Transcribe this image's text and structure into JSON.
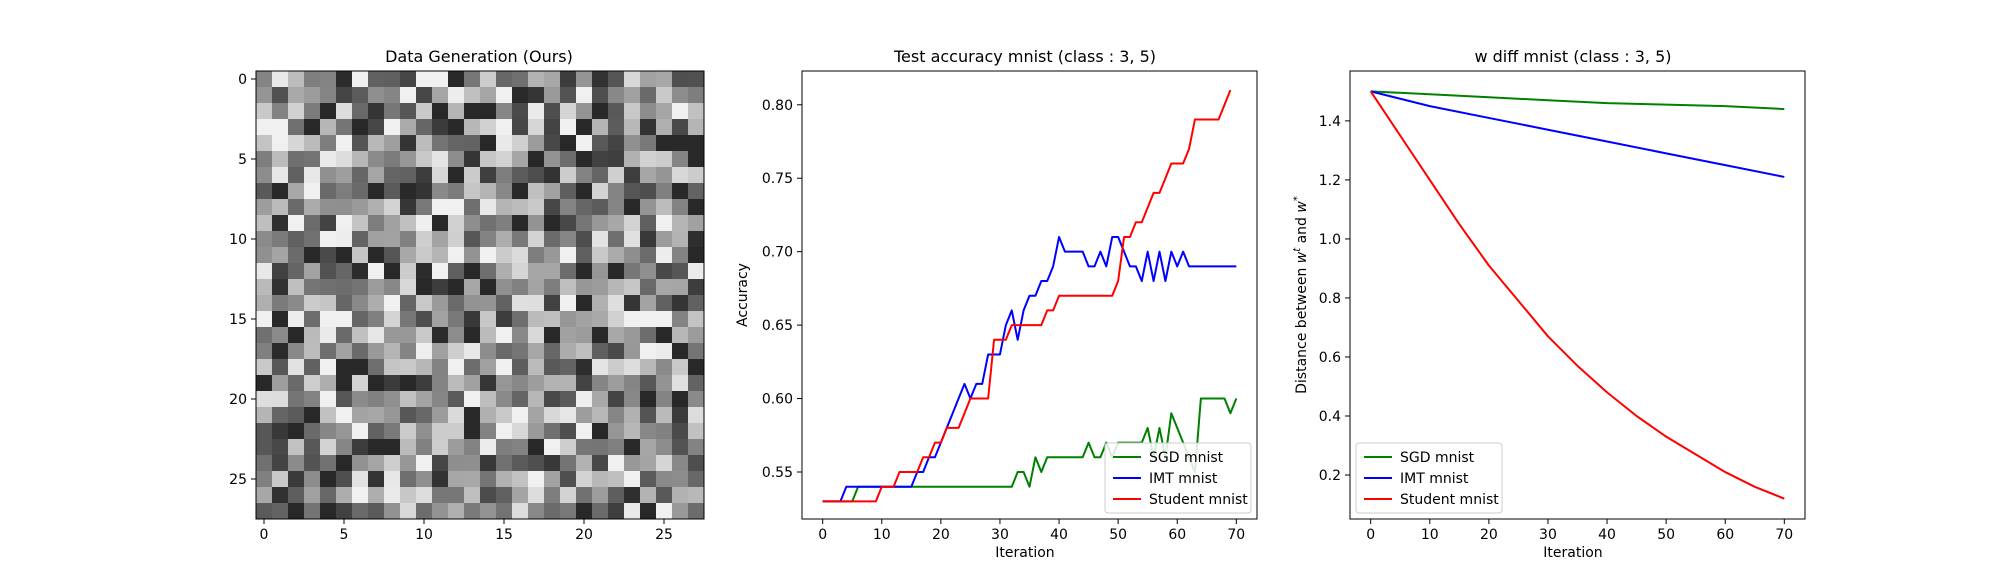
{
  "chart_data": [
    {
      "type": "heatmap",
      "title": "Data Generation (Ours)",
      "xlabel": "",
      "ylabel": "",
      "size": [
        28,
        28
      ],
      "xticks": [
        "0",
        "5",
        "10",
        "15",
        "20",
        "25"
      ],
      "yticks": [
        "0",
        "5",
        "10",
        "15",
        "20",
        "25"
      ],
      "colormap": "gray",
      "seed": 7
    },
    {
      "type": "line",
      "title": "Test accuracy mnist (class : 3, 5)",
      "xlabel": "Iteration",
      "ylabel": "Accuracy",
      "xlim": [
        -3.5,
        73.5
      ],
      "ylim": [
        0.518,
        0.823
      ],
      "xticks": [
        "0",
        "10",
        "20",
        "30",
        "40",
        "50",
        "60",
        "70"
      ],
      "yticks": [
        "0.55",
        "0.60",
        "0.65",
        "0.70",
        "0.75",
        "0.80"
      ],
      "legend": "bottom-right",
      "series": [
        {
          "name": "SGD mnist",
          "color": "#008000",
          "points": [
            [
              0,
              0.53
            ],
            [
              3,
              0.53
            ],
            [
              4,
              0.53
            ],
            [
              5,
              0.53
            ],
            [
              6,
              0.54
            ],
            [
              8,
              0.54
            ],
            [
              10,
              0.54
            ],
            [
              15,
              0.54
            ],
            [
              20,
              0.54
            ],
            [
              25,
              0.54
            ],
            [
              30,
              0.54
            ],
            [
              32,
              0.54
            ],
            [
              33,
              0.55
            ],
            [
              34,
              0.55
            ],
            [
              35,
              0.54
            ],
            [
              36,
              0.56
            ],
            [
              37,
              0.55
            ],
            [
              38,
              0.56
            ],
            [
              40,
              0.56
            ],
            [
              42,
              0.56
            ],
            [
              44,
              0.56
            ],
            [
              45,
              0.57
            ],
            [
              46,
              0.56
            ],
            [
              47,
              0.56
            ],
            [
              48,
              0.57
            ],
            [
              49,
              0.56
            ],
            [
              50,
              0.57
            ],
            [
              52,
              0.57
            ],
            [
              54,
              0.57
            ],
            [
              55,
              0.58
            ],
            [
              56,
              0.56
            ],
            [
              57,
              0.58
            ],
            [
              58,
              0.56
            ],
            [
              59,
              0.59
            ],
            [
              60,
              0.58
            ],
            [
              61,
              0.57
            ],
            [
              62,
              0.56
            ],
            [
              63,
              0.55
            ],
            [
              64,
              0.6
            ],
            [
              66,
              0.6
            ],
            [
              68,
              0.6
            ],
            [
              69,
              0.59
            ],
            [
              70,
              0.6
            ]
          ]
        },
        {
          "name": "IMT mnist",
          "color": "#0000ff",
          "points": [
            [
              0,
              0.53
            ],
            [
              2,
              0.53
            ],
            [
              3,
              0.53
            ],
            [
              4,
              0.54
            ],
            [
              6,
              0.54
            ],
            [
              8,
              0.54
            ],
            [
              10,
              0.54
            ],
            [
              12,
              0.54
            ],
            [
              14,
              0.54
            ],
            [
              15,
              0.54
            ],
            [
              16,
              0.55
            ],
            [
              17,
              0.55
            ],
            [
              18,
              0.56
            ],
            [
              19,
              0.56
            ],
            [
              20,
              0.57
            ],
            [
              21,
              0.58
            ],
            [
              22,
              0.59
            ],
            [
              23,
              0.6
            ],
            [
              24,
              0.61
            ],
            [
              25,
              0.6
            ],
            [
              26,
              0.61
            ],
            [
              27,
              0.61
            ],
            [
              28,
              0.63
            ],
            [
              29,
              0.63
            ],
            [
              30,
              0.63
            ],
            [
              31,
              0.65
            ],
            [
              32,
              0.66
            ],
            [
              33,
              0.64
            ],
            [
              34,
              0.66
            ],
            [
              35,
              0.67
            ],
            [
              36,
              0.67
            ],
            [
              37,
              0.68
            ],
            [
              38,
              0.68
            ],
            [
              39,
              0.69
            ],
            [
              40,
              0.71
            ],
            [
              41,
              0.7
            ],
            [
              42,
              0.7
            ],
            [
              43,
              0.7
            ],
            [
              44,
              0.7
            ],
            [
              45,
              0.69
            ],
            [
              46,
              0.69
            ],
            [
              47,
              0.7
            ],
            [
              48,
              0.69
            ],
            [
              49,
              0.71
            ],
            [
              50,
              0.71
            ],
            [
              51,
              0.7
            ],
            [
              52,
              0.69
            ],
            [
              53,
              0.69
            ],
            [
              54,
              0.68
            ],
            [
              55,
              0.7
            ],
            [
              56,
              0.68
            ],
            [
              57,
              0.7
            ],
            [
              58,
              0.68
            ],
            [
              59,
              0.7
            ],
            [
              60,
              0.69
            ],
            [
              61,
              0.7
            ],
            [
              62,
              0.69
            ],
            [
              64,
              0.69
            ],
            [
              66,
              0.69
            ],
            [
              68,
              0.69
            ],
            [
              70,
              0.69
            ]
          ]
        },
        {
          "name": "Student mnist",
          "color": "#ff0000",
          "points": [
            [
              0,
              0.53
            ],
            [
              2,
              0.53
            ],
            [
              4,
              0.53
            ],
            [
              6,
              0.53
            ],
            [
              8,
              0.53
            ],
            [
              9,
              0.53
            ],
            [
              10,
              0.54
            ],
            [
              11,
              0.54
            ],
            [
              12,
              0.54
            ],
            [
              13,
              0.55
            ],
            [
              14,
              0.55
            ],
            [
              15,
              0.55
            ],
            [
              16,
              0.55
            ],
            [
              17,
              0.56
            ],
            [
              18,
              0.56
            ],
            [
              19,
              0.57
            ],
            [
              20,
              0.57
            ],
            [
              21,
              0.58
            ],
            [
              22,
              0.58
            ],
            [
              23,
              0.58
            ],
            [
              24,
              0.59
            ],
            [
              25,
              0.6
            ],
            [
              26,
              0.6
            ],
            [
              27,
              0.6
            ],
            [
              28,
              0.6
            ],
            [
              29,
              0.64
            ],
            [
              30,
              0.64
            ],
            [
              31,
              0.64
            ],
            [
              32,
              0.65
            ],
            [
              33,
              0.65
            ],
            [
              34,
              0.65
            ],
            [
              35,
              0.65
            ],
            [
              36,
              0.65
            ],
            [
              37,
              0.65
            ],
            [
              38,
              0.66
            ],
            [
              39,
              0.66
            ],
            [
              40,
              0.67
            ],
            [
              42,
              0.67
            ],
            [
              44,
              0.67
            ],
            [
              46,
              0.67
            ],
            [
              48,
              0.67
            ],
            [
              49,
              0.67
            ],
            [
              50,
              0.68
            ],
            [
              51,
              0.71
            ],
            [
              52,
              0.71
            ],
            [
              53,
              0.72
            ],
            [
              54,
              0.72
            ],
            [
              55,
              0.73
            ],
            [
              56,
              0.74
            ],
            [
              57,
              0.74
            ],
            [
              58,
              0.75
            ],
            [
              59,
              0.76
            ],
            [
              60,
              0.76
            ],
            [
              61,
              0.76
            ],
            [
              62,
              0.77
            ],
            [
              63,
              0.79
            ],
            [
              64,
              0.79
            ],
            [
              65,
              0.79
            ],
            [
              66,
              0.79
            ],
            [
              67,
              0.79
            ],
            [
              68,
              0.8
            ],
            [
              69,
              0.81
            ]
          ]
        }
      ]
    },
    {
      "type": "line",
      "title": "w diff mnist (class : 3, 5)",
      "xlabel": "Iteration",
      "ylabel": "Distance between w^t and w^*",
      "xlim": [
        -3.5,
        73.5
      ],
      "ylim": [
        0.051,
        1.569
      ],
      "xticks": [
        "0",
        "10",
        "20",
        "30",
        "40",
        "50",
        "60",
        "70"
      ],
      "yticks": [
        "0.2",
        "0.4",
        "0.6",
        "0.8",
        "1.0",
        "1.2",
        "1.4"
      ],
      "legend": "bottom-left",
      "series": [
        {
          "name": "SGD mnist",
          "color": "#008000",
          "points": [
            [
              0,
              1.5
            ],
            [
              10,
              1.49
            ],
            [
              20,
              1.48
            ],
            [
              30,
              1.47
            ],
            [
              40,
              1.46
            ],
            [
              50,
              1.455
            ],
            [
              60,
              1.45
            ],
            [
              70,
              1.44
            ]
          ]
        },
        {
          "name": "IMT mnist",
          "color": "#0000ff",
          "points": [
            [
              0,
              1.5
            ],
            [
              10,
              1.45
            ],
            [
              20,
              1.41
            ],
            [
              30,
              1.37
            ],
            [
              40,
              1.33
            ],
            [
              50,
              1.29
            ],
            [
              60,
              1.25
            ],
            [
              70,
              1.21
            ]
          ]
        },
        {
          "name": "Student mnist",
          "color": "#ff0000",
          "points": [
            [
              0,
              1.5
            ],
            [
              5,
              1.35
            ],
            [
              10,
              1.2
            ],
            [
              15,
              1.05
            ],
            [
              20,
              0.91
            ],
            [
              25,
              0.79
            ],
            [
              30,
              0.67
            ],
            [
              35,
              0.57
            ],
            [
              40,
              0.48
            ],
            [
              45,
              0.4
            ],
            [
              50,
              0.33
            ],
            [
              55,
              0.27
            ],
            [
              60,
              0.21
            ],
            [
              65,
              0.16
            ],
            [
              70,
              0.12
            ]
          ]
        }
      ]
    }
  ]
}
